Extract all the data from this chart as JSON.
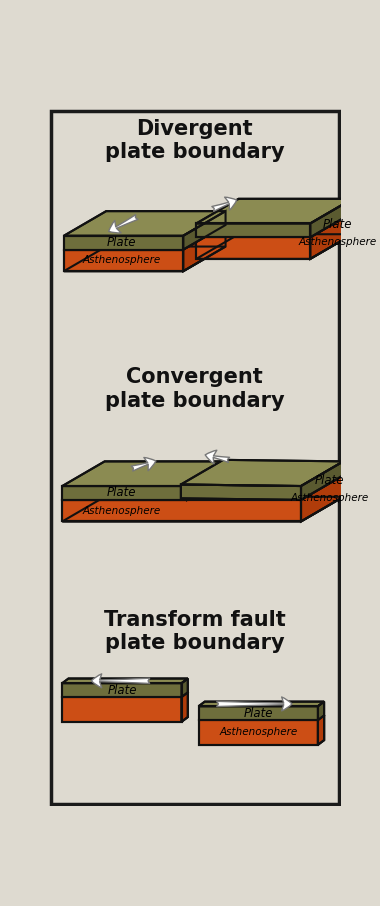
{
  "bg_color": "#dedad0",
  "border_color": "#1a1a1a",
  "plate_top_color": "#8b8b52",
  "plate_side_color": "#5a5a30",
  "plate_front_color": "#6e6e3c",
  "asth_top_color": "#e85c20",
  "asth_side_color": "#b03c0a",
  "asth_front_color": "#cc4e15",
  "outline_color": "#111111",
  "arrow_fc": "#ffffff",
  "arrow_ec": "#888888",
  "label_color": "#111111",
  "title1": "Divergent\nplate boundary",
  "title2": "Convergent\nplate boundary",
  "title3": "Transform fault\nplate boundary",
  "title_fontsize": 15,
  "label_fontsize": 8.5,
  "lw": 1.5
}
